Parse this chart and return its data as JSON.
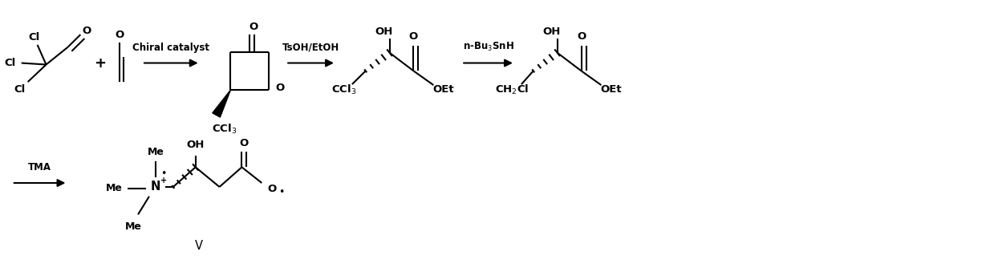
{
  "background_color": "#ffffff",
  "line_color": "#000000",
  "text_color": "#000000",
  "fig_width": 12.39,
  "fig_height": 3.39,
  "dpi": 100,
  "arrow1_label": "Chiral catalyst",
  "arrow2_label": "TsOH/EtOH",
  "arrow3_label": "n-Bu$_3$SnH",
  "arrow4_label": "TMA",
  "compound_v_label": "V",
  "lw": 1.5,
  "fs": 9.5,
  "fs_small": 8.5
}
